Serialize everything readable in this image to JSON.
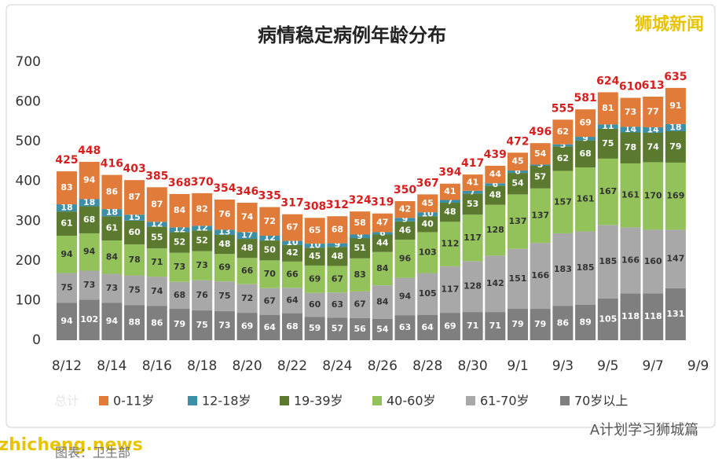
{
  "chart_data": {
    "type": "stacked_bar",
    "title": "病情稳定病例年龄分布",
    "watermark": "狮城新闻",
    "faded_legend_label": "总计",
    "footer_left": "zhicheng.news",
    "footer_right": "A计划学习狮城篇",
    "source": "图表：卫生部",
    "categories": [
      "8/12",
      null,
      "8/14",
      null,
      "8/16",
      null,
      "8/18",
      null,
      "8/20",
      null,
      "8/22",
      null,
      "8/24",
      null,
      "8/26",
      null,
      "8/28",
      null,
      "8/30",
      null,
      "9/1",
      null,
      "9/3",
      null,
      "9/5",
      null,
      "9/7",
      null,
      "9/9"
    ],
    "series": [
      {
        "name": "0-11岁",
        "color": "#e07b39",
        "values": [
          83,
          94,
          86,
          87,
          87,
          84,
          82,
          76,
          74,
          72,
          67,
          65,
          68,
          58,
          47,
          42,
          45,
          41,
          41,
          44,
          45,
          54,
          62,
          69,
          81,
          73,
          77,
          91,
          null
        ]
      },
      {
        "name": "12-18岁",
        "color": "#3b8fa6",
        "values": [
          18,
          18,
          18,
          15,
          12,
          12,
          12,
          13,
          17,
          12,
          10,
          10,
          9,
          9,
          6,
          9,
          10,
          7,
          7,
          6,
          6,
          3,
          5,
          9,
          11,
          14,
          14,
          18,
          null
        ]
      },
      {
        "name": "19-39岁",
        "color": "#5b7a2f",
        "values": [
          61,
          68,
          61,
          60,
          55,
          52,
          52,
          48,
          48,
          50,
          42,
          45,
          48,
          51,
          44,
          46,
          40,
          48,
          53,
          48,
          54,
          57,
          62,
          68,
          75,
          78,
          74,
          79,
          null
        ]
      },
      {
        "name": "40-60岁",
        "color": "#93c25b",
        "values": [
          94,
          94,
          84,
          78,
          71,
          73,
          73,
          69,
          66,
          70,
          66,
          69,
          67,
          83,
          84,
          96,
          103,
          112,
          117,
          128,
          137,
          137,
          157,
          161,
          167,
          161,
          170,
          169,
          null
        ]
      },
      {
        "name": "61-70岁",
        "color": "#a8a8a8",
        "values": [
          75,
          73,
          73,
          75,
          74,
          68,
          76,
          75,
          72,
          67,
          64,
          60,
          63,
          67,
          84,
          94,
          105,
          117,
          128,
          142,
          151,
          166,
          183,
          185,
          185,
          166,
          160,
          147,
          null
        ]
      },
      {
        "name": "70岁以上",
        "color": "#7f7f7f",
        "values": [
          94,
          102,
          94,
          88,
          86,
          79,
          75,
          73,
          69,
          64,
          68,
          59,
          57,
          56,
          54,
          63,
          64,
          69,
          71,
          71,
          79,
          79,
          86,
          89,
          105,
          118,
          118,
          131,
          null
        ]
      }
    ],
    "totals": [
      425,
      448,
      416,
      403,
      385,
      368,
      370,
      354,
      346,
      335,
      317,
      308,
      312,
      324,
      319,
      350,
      367,
      394,
      417,
      439,
      472,
      496,
      555,
      581,
      624,
      610,
      613,
      635,
      null
    ],
    "ylim": [
      0,
      700
    ],
    "yticks": [
      0,
      100,
      200,
      300,
      400,
      500,
      600,
      700
    ]
  }
}
